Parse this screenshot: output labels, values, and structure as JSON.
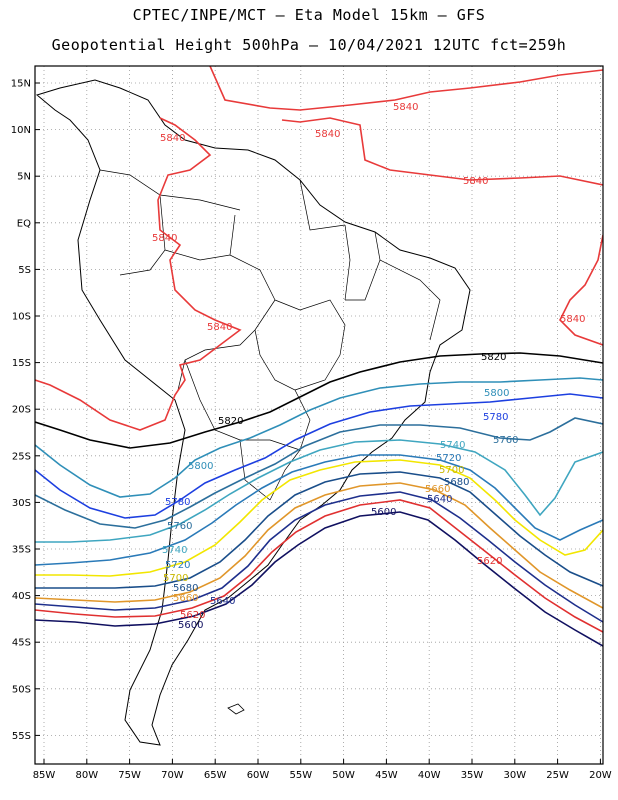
{
  "title_line1": "CPTEC/INPE/MCT –  Eta Model 15km – GFS",
  "title_line2": "Geopotential Height 500hPa – 10/04/2021 12UTC fct=259h",
  "lat_labels": [
    "15N",
    "10N",
    "5N",
    "EQ",
    "5S",
    "10S",
    "15S",
    "20S",
    "25S",
    "30S",
    "35S",
    "40S",
    "45S",
    "50S",
    "55S"
  ],
  "lon_labels": [
    "85W",
    "80W",
    "75W",
    "70W",
    "65W",
    "60W",
    "55W",
    "50W",
    "45W",
    "40W",
    "35W",
    "30W",
    "25W",
    "20W"
  ],
  "contours": [
    {
      "level": "5840",
      "color": "#e83a3a"
    },
    {
      "level": "5820",
      "color": "#000000"
    },
    {
      "level": "5800",
      "color": "#2f8fb8"
    },
    {
      "level": "5780",
      "color": "#1d3fe0"
    },
    {
      "level": "5760",
      "color": "#2c6f9c"
    },
    {
      "level": "5740",
      "color": "#3fa6c0"
    },
    {
      "level": "5720",
      "color": "#2a7ab8"
    },
    {
      "level": "5700",
      "color": "#f2e600"
    },
    {
      "level": "5680",
      "color": "#1a4e8a"
    },
    {
      "level": "5660",
      "color": "#e0962a"
    },
    {
      "level": "5640",
      "color": "#1e2f8c"
    },
    {
      "level": "5620",
      "color": "#e03030"
    },
    {
      "level": "5600",
      "color": "#101060"
    }
  ],
  "labels": {
    "l5840_a": "5840",
    "l5840_b": "5840",
    "l5840_c": "5840",
    "l5840_d": "5840",
    "l5840_e": "5840",
    "l5840_f": "5840",
    "l5840_g": "5840",
    "l5820_a": "5820",
    "l5820_b": "5820",
    "l5800_a": "5800",
    "l5800_b": "5800",
    "l5780_a": "5780",
    "l5780_b": "5780",
    "l5760_a": "5760",
    "l5760_b": "5760",
    "l5740_a": "5740",
    "l5740_b": "5740",
    "l5720_a": "5720",
    "l5720_b": "5720",
    "l5700_a": "5700",
    "l5700_b": "5700",
    "l5680_a": "5680",
    "l5680_b": "5680",
    "l5660_a": "5660",
    "l5660_b": "5660",
    "l5640_a": "5640",
    "l5640_b": "5640",
    "l5620_a": "5620",
    "l5620_b": "5620",
    "l5600_a": "5600",
    "l5600_b": "5600"
  }
}
